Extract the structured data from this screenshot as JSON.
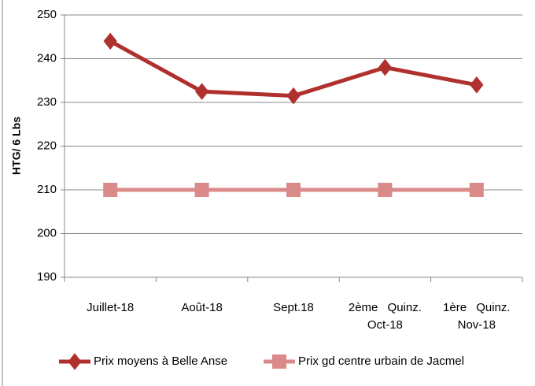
{
  "chart_data": {
    "type": "line",
    "y_label": "HTG/ 6 Lbs",
    "categories": [
      "Juillet-18",
      "Août-18",
      "Sept.18",
      "2ème Quinz. Oct-18",
      "1ère Quinz. Nov-18"
    ],
    "series": [
      {
        "name": "Prix moyens à Belle Anse",
        "color": "#b0302e",
        "marker": "diamond",
        "values": [
          244,
          232.5,
          231.5,
          238,
          234
        ]
      },
      {
        "name": "Prix gd centre urbain de Jacmel",
        "color": "#d98a89",
        "marker": "square",
        "values": [
          210,
          210,
          210,
          210,
          210
        ]
      }
    ],
    "ylim": [
      190,
      250
    ],
    "yticks": [
      190,
      200,
      210,
      220,
      230,
      240,
      250
    ],
    "grid": true,
    "legend": "bottom"
  }
}
